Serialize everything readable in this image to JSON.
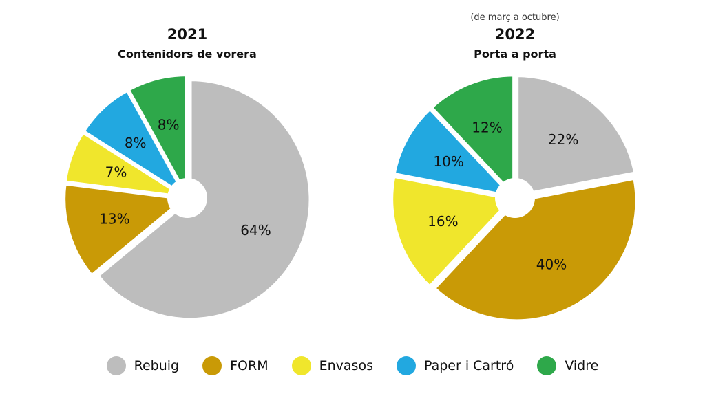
{
  "legend": [
    {
      "label": "Rebuig",
      "color": "#bdbdbd"
    },
    {
      "label": "FORM",
      "color": "#c99a06"
    },
    {
      "label": "Envasos",
      "color": "#f0e62c"
    },
    {
      "label": "Paper i Cartró",
      "color": "#22a8e0"
    },
    {
      "label": "Vidre",
      "color": "#2ea84a"
    }
  ],
  "chart_data": [
    {
      "type": "pie",
      "title": "2021",
      "subtitle": "Contenidors de vorera",
      "note": "",
      "categories": [
        "Rebuig",
        "FORM",
        "Envasos",
        "Paper i Cartró",
        "Vidre"
      ],
      "values": [
        64,
        13,
        7,
        8,
        8
      ],
      "labels": [
        "64%",
        "13%",
        "7%",
        "8%",
        "8%"
      ],
      "colors": [
        "#bdbdbd",
        "#c99a06",
        "#f0e62c",
        "#22a8e0",
        "#2ea84a"
      ]
    },
    {
      "type": "pie",
      "title": "2022",
      "subtitle": "Porta a porta",
      "note": "(de març a octubre)",
      "categories": [
        "Rebuig",
        "FORM",
        "Envasos",
        "Paper i Cartró",
        "Vidre"
      ],
      "values": [
        22,
        40,
        16,
        10,
        12
      ],
      "labels": [
        "22%",
        "40%",
        "16%",
        "10%",
        "12%"
      ],
      "colors": [
        "#bdbdbd",
        "#c99a06",
        "#f0e62c",
        "#22a8e0",
        "#2ea84a"
      ]
    }
  ]
}
